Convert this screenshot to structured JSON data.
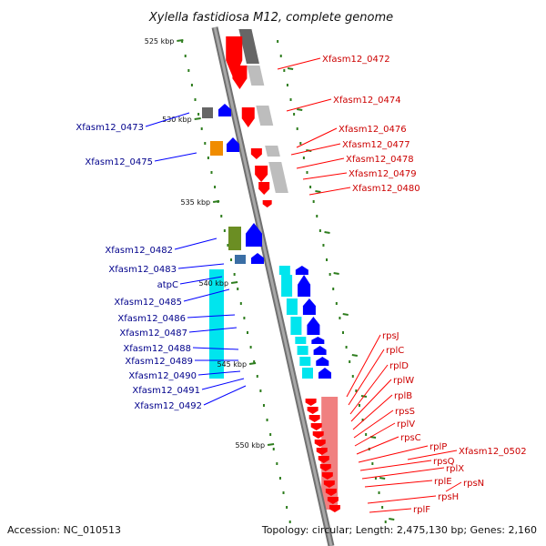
{
  "header": {
    "title": "Xylella fastidiosa M12, complete genome"
  },
  "footer": {
    "accession": "Accession: NC_010513",
    "summary": "Topology: circular; Length: 2,475,130 bp; Genes: 2,160"
  },
  "ticks": [
    {
      "label": "525 kbp"
    },
    {
      "label": "530 kbp"
    },
    {
      "label": "535 kbp"
    },
    {
      "label": "540 kbp"
    },
    {
      "label": "545 kbp"
    },
    {
      "label": "550 kbp"
    }
  ],
  "colors": {
    "backbone": "#8c8c8c",
    "reverse_gene": "#ff0000",
    "reverse_label": "#cc0000",
    "forward_gene": "#0000ff",
    "forward_label": "#00008b",
    "tick": "#2e7d1e",
    "atp_operon": "#00e5ee",
    "rps_operon": "#f08080",
    "cds_dark": "#666666",
    "cds_light": "#bdbdbd",
    "orange_cds": "#f08c00",
    "olive_cds": "#6b8e23",
    "steel_cds": "#3a6ea5"
  },
  "reverse_labels": [
    "Xfasm12_0472",
    "Xfasm12_0474",
    "Xfasm12_0476",
    "Xfasm12_0477",
    "Xfasm12_0478",
    "Xfasm12_0479",
    "Xfasm12_0480",
    "rpsJ",
    "rplC",
    "rplD",
    "rplW",
    "rplB",
    "rpsS",
    "rplV",
    "rpsC",
    "rplP",
    "Xfasm12_0502",
    "rpsQ",
    "rplX",
    "rplE",
    "rpsN",
    "rpsH",
    "rplF"
  ],
  "forward_labels": [
    "Xfasm12_0473",
    "Xfasm12_0475",
    "Xfasm12_0482",
    "Xfasm12_0483",
    "atpC",
    "Xfasm12_0485",
    "Xfasm12_0486",
    "Xfasm12_0487",
    "Xfasm12_0488",
    "Xfasm12_0489",
    "Xfasm12_0490",
    "Xfasm12_0491",
    "Xfasm12_0492"
  ]
}
